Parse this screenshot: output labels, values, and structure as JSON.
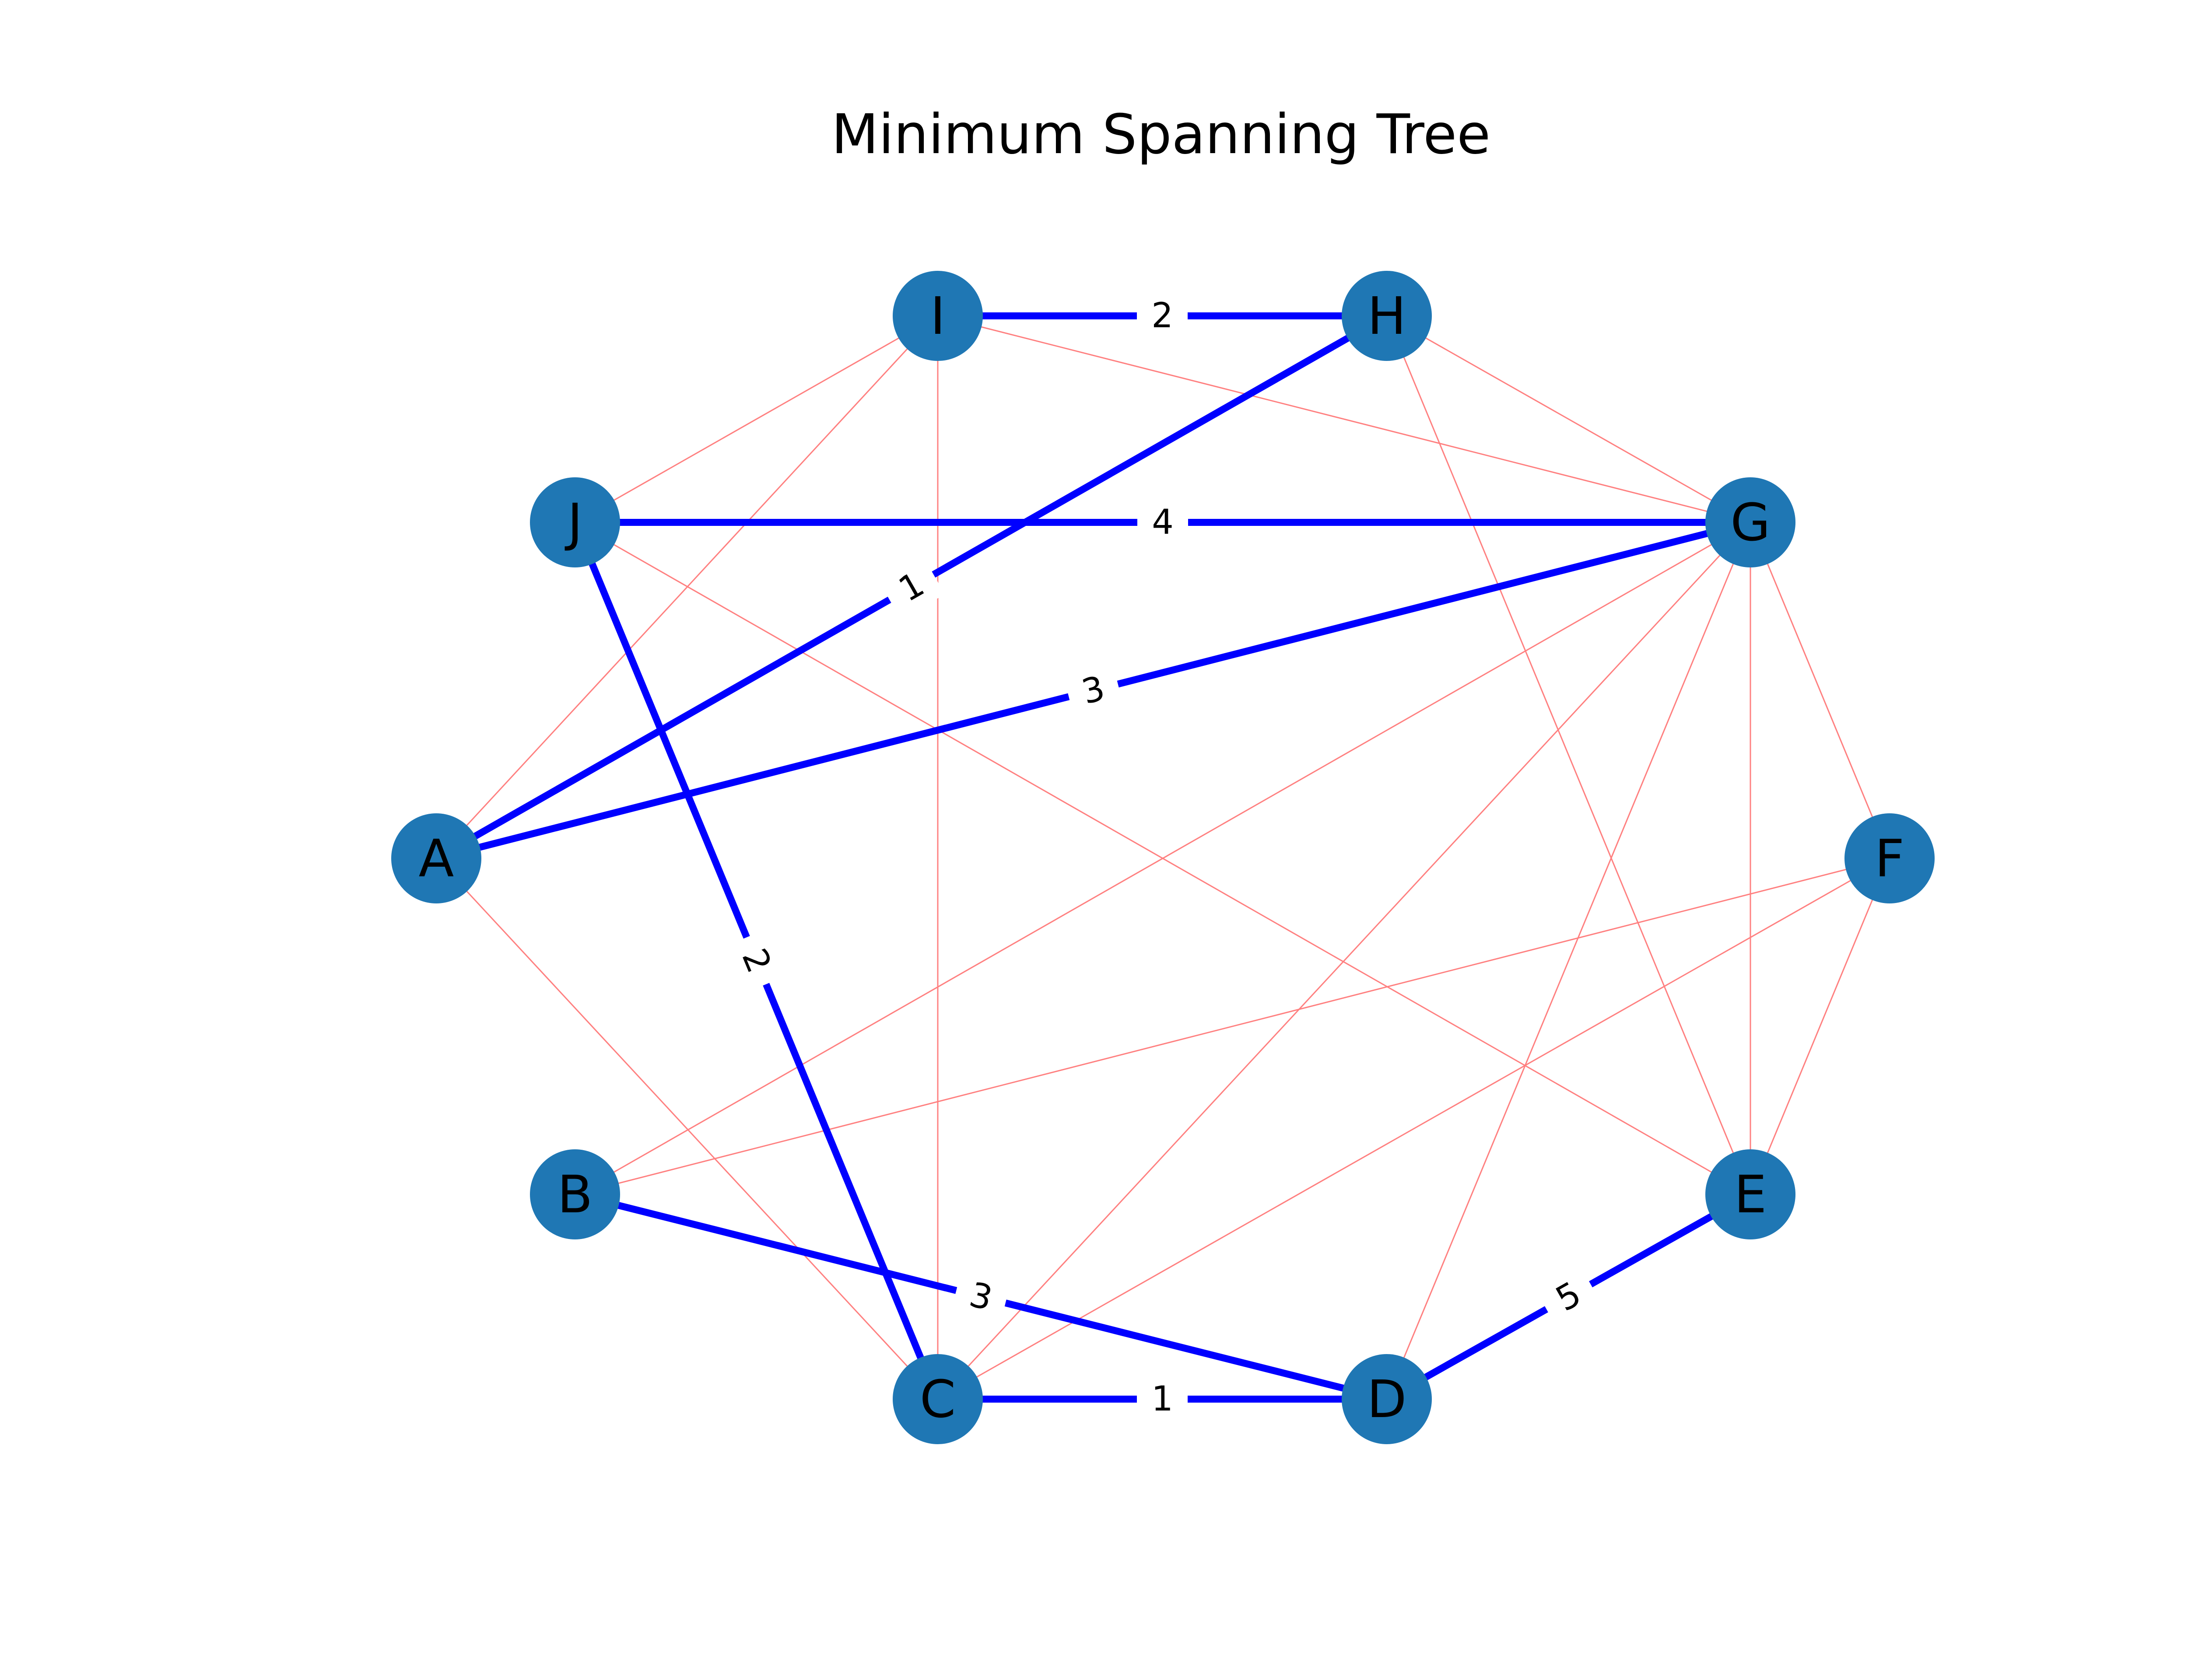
{
  "title": "Minimum Spanning Tree",
  "colors": {
    "node_fill": "#1f77b4",
    "mst_edge": "#0000ff",
    "other_edge": "#ff8080",
    "label_bg": "#ffffff",
    "text": "#000000"
  },
  "graph": {
    "nodes": [
      {
        "id": "A",
        "label": "A"
      },
      {
        "id": "B",
        "label": "B"
      },
      {
        "id": "C",
        "label": "C"
      },
      {
        "id": "D",
        "label": "D"
      },
      {
        "id": "E",
        "label": "E"
      },
      {
        "id": "F",
        "label": "F"
      },
      {
        "id": "G",
        "label": "G"
      },
      {
        "id": "H",
        "label": "H"
      },
      {
        "id": "I",
        "label": "I"
      },
      {
        "id": "J",
        "label": "J"
      }
    ],
    "mst_edges": [
      {
        "source": "I",
        "target": "H",
        "weight": "2"
      },
      {
        "source": "A",
        "target": "H",
        "weight": "1"
      },
      {
        "source": "J",
        "target": "G",
        "weight": "4"
      },
      {
        "source": "A",
        "target": "G",
        "weight": "3"
      },
      {
        "source": "J",
        "target": "C",
        "weight": "2"
      },
      {
        "source": "B",
        "target": "D",
        "weight": "3"
      },
      {
        "source": "C",
        "target": "D",
        "weight": "1"
      },
      {
        "source": "D",
        "target": "E",
        "weight": "5"
      }
    ],
    "other_edges": [
      {
        "source": "I",
        "target": "J"
      },
      {
        "source": "I",
        "target": "A"
      },
      {
        "source": "I",
        "target": "C"
      },
      {
        "source": "I",
        "target": "G"
      },
      {
        "source": "H",
        "target": "G"
      },
      {
        "source": "H",
        "target": "E"
      },
      {
        "source": "J",
        "target": "E"
      },
      {
        "source": "A",
        "target": "C"
      },
      {
        "source": "G",
        "target": "F"
      },
      {
        "source": "G",
        "target": "B"
      },
      {
        "source": "G",
        "target": "C"
      },
      {
        "source": "G",
        "target": "D"
      },
      {
        "source": "G",
        "target": "E"
      },
      {
        "source": "F",
        "target": "B"
      },
      {
        "source": "F",
        "target": "C"
      },
      {
        "source": "F",
        "target": "E"
      }
    ]
  }
}
